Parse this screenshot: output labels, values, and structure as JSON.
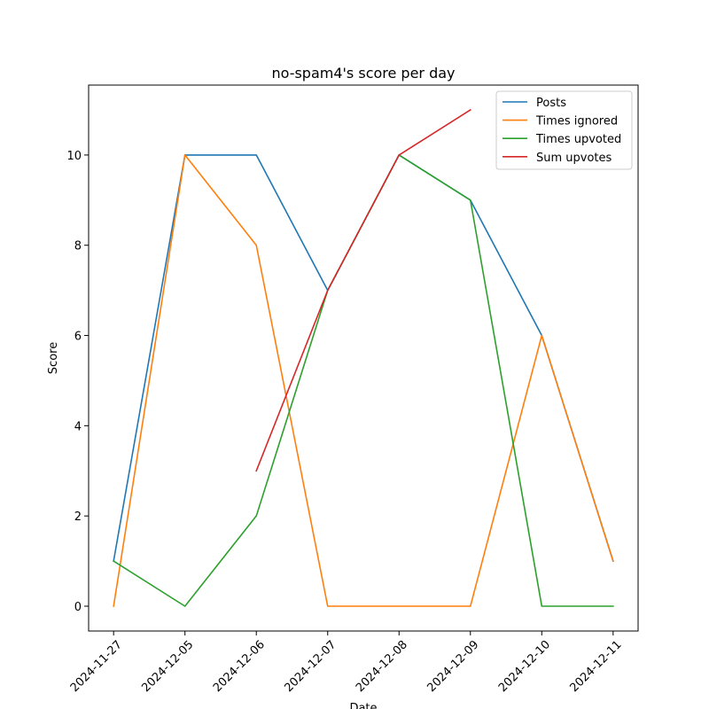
{
  "chart_data": {
    "type": "line",
    "title": "no-spam4's score per day",
    "xlabel": "Date",
    "ylabel": "Score",
    "x": [
      "2024-11-27",
      "2024-12-05",
      "2024-12-06",
      "2024-12-07",
      "2024-12-08",
      "2024-12-09",
      "2024-12-10",
      "2024-12-11"
    ],
    "ylim": [
      -0.55,
      11.55
    ],
    "yticks": [
      0,
      2,
      4,
      6,
      8,
      10
    ],
    "grid": false,
    "legend_position": "top-right",
    "series": [
      {
        "name": "Posts",
        "color": "#1f77b4",
        "values": [
          1,
          10,
          10,
          7,
          10,
          9,
          6,
          1
        ]
      },
      {
        "name": "Times ignored",
        "color": "#ff7f0e",
        "values": [
          0,
          10,
          8,
          0,
          0,
          0,
          6,
          1
        ]
      },
      {
        "name": "Times upvoted",
        "color": "#2ca02c",
        "values": [
          1,
          0,
          2,
          7,
          10,
          9,
          0,
          0
        ]
      },
      {
        "name": "Sum upvotes",
        "color": "#d62728",
        "values": [
          null,
          null,
          3,
          7,
          10,
          11,
          null,
          null
        ]
      }
    ]
  }
}
